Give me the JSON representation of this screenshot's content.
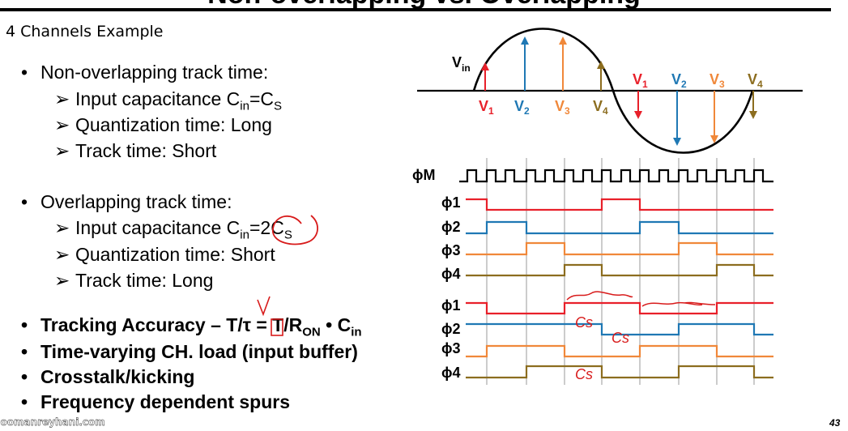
{
  "slide": {
    "title": "Non-overlapping vs. Overlapping",
    "subtitle": "4 Channels Example",
    "page_number": "43",
    "footer_credit": "hoomanreyhani.com"
  },
  "non_overlapping": {
    "heading": "Non-overlapping track time:",
    "items": [
      {
        "prefix": "Input capacitance C",
        "sub": "in",
        "mid": "=C",
        "sub2": "S"
      },
      {
        "text": "Quantization time: Long"
      },
      {
        "text": "Track time: Short"
      }
    ]
  },
  "overlapping": {
    "heading": "Overlapping track time:",
    "items": [
      {
        "prefix": "Input capacitance C",
        "sub": "in",
        "mid": "=2C",
        "sub2": "S"
      },
      {
        "text": "Quantization time: Short"
      },
      {
        "text": "Track time: Long"
      }
    ]
  },
  "issues": {
    "tracking": {
      "a": "Tracking Accuracy – T/τ = T/R",
      "sub1": "ON",
      "b": " • C",
      "sub2": "in"
    },
    "items": [
      "Time-varying CH. load (input buffer)",
      "Crosstalk/kicking",
      "Frequency dependent spurs"
    ]
  },
  "diagram": {
    "vin_label": "V",
    "vin_sub": "in",
    "sample_labels": [
      {
        "v": "V",
        "n": "1",
        "color": "#e8202a"
      },
      {
        "v": "V",
        "n": "2",
        "color": "#1f78b4"
      },
      {
        "v": "V",
        "n": "3",
        "color": "#f0883a"
      },
      {
        "v": "V",
        "n": "4",
        "color": "#8c6d1f"
      }
    ],
    "clock_master": "ϕM",
    "phases_top": [
      "ϕ1",
      "ϕ2",
      "ϕ3",
      "ϕ4"
    ],
    "phases_bottom": [
      "ϕ1",
      "ϕ2",
      "ϕ3",
      "ϕ4"
    ],
    "annotation_cs": "Cs",
    "colors": {
      "red": "#e8202a",
      "blue": "#1f78b4",
      "orange": "#f0883a",
      "olive": "#8c6d1f",
      "ink": "#d81b1b"
    }
  }
}
